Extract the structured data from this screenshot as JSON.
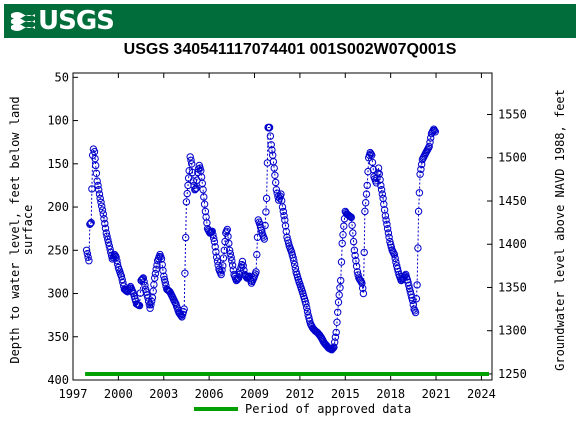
{
  "header": {
    "logo_text": "USGS"
  },
  "chart_data": {
    "type": "scatter",
    "title": "USGS 340541117074401 001S002W07Q001S",
    "ylabel_left_line1": "Depth to water level, feet below land",
    "ylabel_left_line2": "surface",
    "ylabel_right": "Groundwater level above NAVD 1988, feet",
    "xlim": [
      1997.0,
      2024.7
    ],
    "ylim_left": [
      400,
      45
    ],
    "ylim_right": [
      1243,
      1598
    ],
    "xticks": [
      1997,
      2000,
      2003,
      2006,
      2009,
      2012,
      2015,
      2018,
      2021,
      2024
    ],
    "xtick_labels": [
      "1997",
      "2000",
      "2003",
      "2006",
      "2009",
      "2012",
      "2015",
      "2018",
      "2021",
      "2024"
    ],
    "yticks_left": [
      50,
      100,
      150,
      200,
      250,
      300,
      350,
      400
    ],
    "ytick_labels_left": [
      "50",
      "100",
      "150",
      "200",
      "250",
      "300",
      "350",
      "400"
    ],
    "yticks_right": [
      1250,
      1300,
      1350,
      1400,
      1450,
      1500,
      1550
    ],
    "ytick_labels_right": [
      "1250",
      "1300",
      "1350",
      "1400",
      "1450",
      "1500",
      "1550"
    ],
    "legend": {
      "label": "Period of approved data",
      "color": "#00a000",
      "placement": "bottom"
    },
    "approved_period": [
      1997.8,
      2024.5
    ],
    "marker_color": "#0000cc",
    "series_anchors": [
      [
        1997.9,
        250
      ],
      [
        1998.05,
        262
      ],
      [
        1998.12,
        220
      ],
      [
        1998.2,
        218
      ],
      [
        1998.3,
        140
      ],
      [
        1998.35,
        133
      ],
      [
        1998.42,
        136
      ],
      [
        1998.5,
        152
      ],
      [
        1998.6,
        170
      ],
      [
        1998.8,
        190
      ],
      [
        1999.0,
        208
      ],
      [
        1999.2,
        230
      ],
      [
        1999.4,
        245
      ],
      [
        1999.6,
        260
      ],
      [
        1999.75,
        255
      ],
      [
        1999.85,
        258
      ],
      [
        2000.0,
        270
      ],
      [
        2000.2,
        280
      ],
      [
        2000.4,
        295
      ],
      [
        2000.6,
        298
      ],
      [
        2000.8,
        292
      ],
      [
        2001.0,
        300
      ],
      [
        2001.2,
        312
      ],
      [
        2001.4,
        314
      ],
      [
        2001.5,
        285
      ],
      [
        2001.65,
        282
      ],
      [
        2001.8,
        295
      ],
      [
        2001.95,
        305
      ],
      [
        2002.1,
        317
      ],
      [
        2002.25,
        305
      ],
      [
        2002.4,
        282
      ],
      [
        2002.6,
        262
      ],
      [
        2002.75,
        255
      ],
      [
        2002.85,
        260
      ],
      [
        2003.0,
        280
      ],
      [
        2003.2,
        295
      ],
      [
        2003.4,
        298
      ],
      [
        2003.6,
        305
      ],
      [
        2003.8,
        312
      ],
      [
        2004.0,
        322
      ],
      [
        2004.2,
        327
      ],
      [
        2004.35,
        318
      ],
      [
        2004.5,
        194
      ],
      [
        2004.6,
        175
      ],
      [
        2004.68,
        158
      ],
      [
        2004.75,
        142
      ],
      [
        2004.85,
        150
      ],
      [
        2004.95,
        170
      ],
      [
        2005.05,
        180
      ],
      [
        2005.15,
        178
      ],
      [
        2005.25,
        160
      ],
      [
        2005.35,
        152
      ],
      [
        2005.45,
        158
      ],
      [
        2005.6,
        180
      ],
      [
        2005.75,
        205
      ],
      [
        2005.9,
        225
      ],
      [
        2006.05,
        230
      ],
      [
        2006.2,
        228
      ],
      [
        2006.35,
        240
      ],
      [
        2006.5,
        258
      ],
      [
        2006.65,
        272
      ],
      [
        2006.8,
        278
      ],
      [
        2006.9,
        268
      ],
      [
        2007.0,
        250
      ],
      [
        2007.1,
        230
      ],
      [
        2007.2,
        226
      ],
      [
        2007.35,
        250
      ],
      [
        2007.5,
        262
      ],
      [
        2007.65,
        278
      ],
      [
        2007.8,
        285
      ],
      [
        2007.95,
        282
      ],
      [
        2008.1,
        270
      ],
      [
        2008.2,
        263
      ],
      [
        2008.35,
        278
      ],
      [
        2008.5,
        282
      ],
      [
        2008.65,
        280
      ],
      [
        2008.8,
        288
      ],
      [
        2008.95,
        282
      ],
      [
        2009.1,
        275
      ],
      [
        2009.25,
        215
      ],
      [
        2009.35,
        220
      ],
      [
        2009.5,
        230
      ],
      [
        2009.65,
        237
      ],
      [
        2009.8,
        190
      ],
      [
        2009.9,
        108
      ],
      [
        2010.0,
        108
      ],
      [
        2010.1,
        128
      ],
      [
        2010.2,
        140
      ],
      [
        2010.3,
        155
      ],
      [
        2010.45,
        180
      ],
      [
        2010.6,
        192
      ],
      [
        2010.75,
        185
      ],
      [
        2010.85,
        200
      ],
      [
        2011.0,
        215
      ],
      [
        2011.15,
        235
      ],
      [
        2011.3,
        245
      ],
      [
        2011.45,
        252
      ],
      [
        2011.6,
        262
      ],
      [
        2011.75,
        275
      ],
      [
        2011.9,
        284
      ],
      [
        2012.05,
        292
      ],
      [
        2012.2,
        300
      ],
      [
        2012.4,
        312
      ],
      [
        2012.55,
        325
      ],
      [
        2012.7,
        335
      ],
      [
        2012.85,
        340
      ],
      [
        2013.0,
        343
      ],
      [
        2013.15,
        345
      ],
      [
        2013.3,
        348
      ],
      [
        2013.45,
        352
      ],
      [
        2013.6,
        357
      ],
      [
        2013.75,
        360
      ],
      [
        2013.9,
        363
      ],
      [
        2014.1,
        365
      ],
      [
        2014.25,
        362
      ],
      [
        2014.4,
        345
      ],
      [
        2014.55,
        310
      ],
      [
        2014.7,
        285
      ],
      [
        2014.8,
        242
      ],
      [
        2014.9,
        222
      ],
      [
        2015.0,
        205
      ],
      [
        2015.1,
        208
      ],
      [
        2015.25,
        210
      ],
      [
        2015.4,
        212
      ],
      [
        2015.5,
        230
      ],
      [
        2015.6,
        250
      ],
      [
        2015.7,
        262
      ],
      [
        2015.8,
        275
      ],
      [
        2015.9,
        282
      ],
      [
        2016.0,
        285
      ],
      [
        2016.1,
        288
      ],
      [
        2016.2,
        300
      ],
      [
        2016.3,
        205
      ],
      [
        2016.45,
        175
      ],
      [
        2016.55,
        143
      ],
      [
        2016.65,
        137
      ],
      [
        2016.75,
        140
      ],
      [
        2016.9,
        165
      ],
      [
        2017.05,
        172
      ],
      [
        2017.2,
        155
      ],
      [
        2017.35,
        175
      ],
      [
        2017.5,
        190
      ],
      [
        2017.65,
        210
      ],
      [
        2017.8,
        225
      ],
      [
        2017.95,
        240
      ],
      [
        2018.1,
        250
      ],
      [
        2018.25,
        255
      ],
      [
        2018.4,
        268
      ],
      [
        2018.55,
        278
      ],
      [
        2018.7,
        285
      ],
      [
        2018.85,
        282
      ],
      [
        2019.0,
        278
      ],
      [
        2019.15,
        287
      ],
      [
        2019.3,
        298
      ],
      [
        2019.45,
        308
      ],
      [
        2019.55,
        318
      ],
      [
        2019.65,
        322
      ],
      [
        2019.75,
        290
      ],
      [
        2019.85,
        205
      ],
      [
        2019.95,
        162
      ],
      [
        2020.1,
        145
      ],
      [
        2020.25,
        140
      ],
      [
        2020.4,
        135
      ],
      [
        2020.55,
        130
      ],
      [
        2020.7,
        115
      ],
      [
        2020.85,
        110
      ],
      [
        2020.95,
        113
      ]
    ]
  },
  "legend_label": "Period of approved data"
}
